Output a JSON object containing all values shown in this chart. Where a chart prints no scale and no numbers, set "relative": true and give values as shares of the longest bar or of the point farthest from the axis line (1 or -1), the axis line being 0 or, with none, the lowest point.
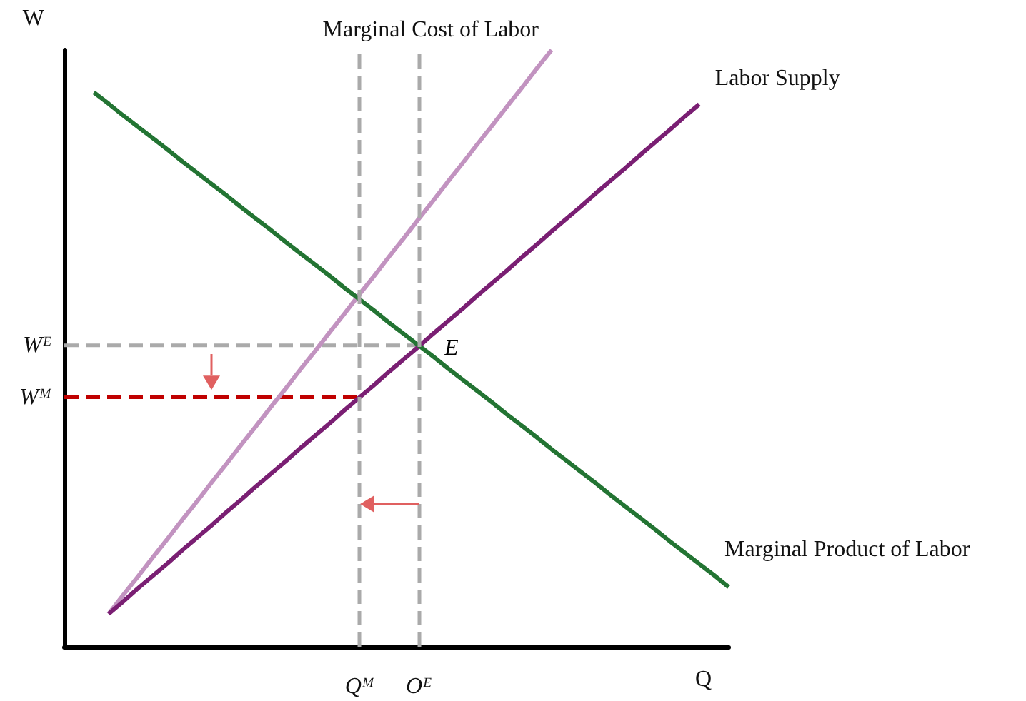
{
  "chart_data": {
    "type": "line",
    "relative": true,
    "xlabel": "Q",
    "ylabel": "W",
    "legend": false,
    "grid": false,
    "marker": "none",
    "categories": [
      null,
      null,
      null,
      null,
      null,
      null,
      null,
      null,
      null,
      null,
      null,
      null,
      null,
      null,
      null,
      null,
      null,
      null,
      null,
      null,
      "Qᴹ",
      null,
      null,
      null,
      "Oᴱ",
      null,
      null,
      null,
      null,
      null,
      null,
      null,
      null,
      null,
      null,
      null,
      null,
      null,
      null,
      null,
      null,
      null,
      null,
      null,
      null,
      null
    ],
    "series": [
      {
        "name": "Marginal Cost of Labor",
        "color": "#c293c0",
        "values": [
          null,
          null,
          null,
          0.055,
          0.087,
          0.118,
          0.15,
          0.181,
          0.213,
          0.244,
          0.276,
          0.307,
          0.339,
          0.37,
          0.402,
          0.433,
          0.465,
          0.496,
          0.528,
          0.559,
          0.591,
          0.622,
          0.654,
          0.685,
          0.717,
          0.748,
          0.78,
          0.811,
          0.843,
          0.874,
          0.906,
          0.937,
          0.969,
          1.0,
          null,
          null,
          null,
          null,
          null,
          null,
          null,
          null,
          null,
          null,
          null,
          null
        ]
      },
      {
        "name": "Labor Supply",
        "color": "#7a1f73",
        "values": [
          null,
          null,
          null,
          0.055,
          0.076,
          0.098,
          0.119,
          0.14,
          0.162,
          0.183,
          0.204,
          0.226,
          0.247,
          0.269,
          0.29,
          0.311,
          0.333,
          0.354,
          0.375,
          0.397,
          0.418,
          0.439,
          0.461,
          0.482,
          0.503,
          0.525,
          0.546,
          0.567,
          0.589,
          0.61,
          0.631,
          0.653,
          0.674,
          0.696,
          0.717,
          0.738,
          0.76,
          0.781,
          0.802,
          0.824,
          0.845,
          0.866,
          0.888,
          0.909,
          null,
          null
        ]
      },
      {
        "name": "Marginal Product of Labor",
        "color": "#237433",
        "values": [
          null,
          null,
          0.929,
          0.91,
          0.89,
          0.871,
          0.852,
          0.833,
          0.813,
          0.794,
          0.775,
          0.756,
          0.736,
          0.717,
          0.698,
          0.678,
          0.659,
          0.64,
          0.621,
          0.601,
          0.582,
          0.563,
          0.543,
          0.524,
          0.505,
          0.486,
          0.466,
          0.447,
          0.428,
          0.409,
          0.389,
          0.37,
          0.351,
          0.331,
          0.312,
          0.293,
          0.274,
          0.254,
          0.235,
          0.216,
          0.197,
          0.177,
          0.158,
          0.139,
          0.12,
          0.1
        ]
      },
      {
        "name": "Wᴱ",
        "color": "#aaaaaa",
        "line_style": "dashed",
        "values": [
          0.505,
          0.505,
          0.505,
          0.505,
          0.505,
          0.505,
          0.505,
          0.505,
          0.505,
          0.505,
          0.505,
          0.505,
          0.505,
          0.505,
          0.505,
          0.505,
          0.505,
          0.505,
          0.505,
          0.505,
          0.505,
          0.505,
          0.505,
          0.505,
          0.505,
          null,
          null,
          null,
          null,
          null,
          null,
          null,
          null,
          null,
          null,
          null,
          null,
          null,
          null,
          null,
          null,
          null,
          null,
          null,
          null,
          null
        ]
      },
      {
        "name": "Wᴹ",
        "color": "#c00000",
        "line_style": "dashed",
        "values": [
          0.418,
          0.418,
          0.418,
          0.418,
          0.418,
          0.418,
          0.418,
          0.418,
          0.418,
          0.418,
          0.418,
          0.418,
          0.418,
          0.418,
          0.418,
          0.418,
          0.418,
          0.418,
          0.418,
          0.418,
          0.418,
          null,
          null,
          null,
          null,
          null,
          null,
          null,
          null,
          null,
          null,
          null,
          null,
          null,
          null,
          null,
          null,
          null,
          null,
          null,
          null,
          null,
          null,
          null,
          null,
          null
        ]
      }
    ],
    "ref_lines": [
      {
        "axis": "x",
        "value": "Oᴱ",
        "color": "#aaaaaa",
        "line_style": "dashed"
      },
      {
        "axis": "x",
        "value": "Qᴹ",
        "color": "#aaaaaa",
        "line_style": "dashed"
      }
    ],
    "annotations": [
      {
        "text": "E",
        "x": "Oᴱ",
        "y": 0.505
      }
    ]
  }
}
